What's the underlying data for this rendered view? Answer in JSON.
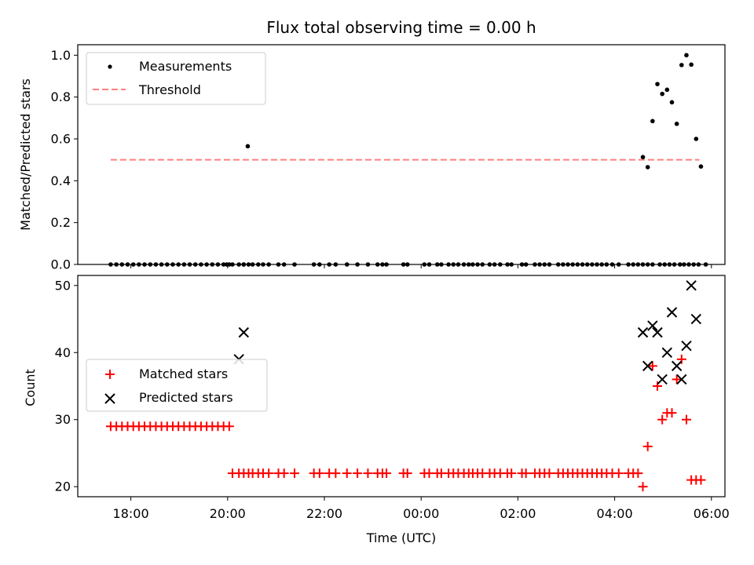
{
  "figure": {
    "title": "Flux total observing time = 0.00 h"
  },
  "chart_data": [
    {
      "type": "scatter",
      "title": "Flux total observing time = 0.00 h",
      "xlabel": "",
      "ylabel": "Matched/Predicted stars",
      "ylim": [
        0,
        1.05
      ],
      "yticks": [
        "0.0",
        "0.2",
        "0.4",
        "0.6",
        "0.8",
        "1.0"
      ],
      "legend_position": "upper left",
      "series": [
        {
          "name": "Measurements",
          "marker": "dot",
          "color": "#000000",
          "x": [
            "17:35",
            "17:42",
            "17:49",
            "17:56",
            "18:03",
            "18:10",
            "18:17",
            "18:24",
            "18:31",
            "18:38",
            "18:45",
            "18:52",
            "18:59",
            "19:06",
            "19:13",
            "19:20",
            "19:27",
            "19:34",
            "19:41",
            "19:48",
            "19:55",
            "20:02",
            "20:06",
            "20:14",
            "20:20",
            "20:26",
            "20:31",
            "20:38",
            "20:44",
            "20:51",
            "21:03",
            "21:10",
            "21:23",
            "21:47",
            "21:54",
            "22:06",
            "22:14",
            "22:28",
            "22:41",
            "22:54",
            "23:06",
            "23:12",
            "23:17",
            "23:38",
            "23:43",
            "24:04",
            "24:10",
            "24:20",
            "24:25",
            "24:34",
            "24:40",
            "24:46",
            "24:53",
            "24:59",
            "25:04",
            "25:10",
            "25:16",
            "25:25",
            "25:31",
            "25:38",
            "25:47",
            "25:52",
            "26:05",
            "26:10",
            "26:21",
            "26:27",
            "26:33",
            "26:39",
            "26:50",
            "26:56",
            "27:02",
            "27:08",
            "27:14",
            "27:20",
            "27:26",
            "27:32",
            "27:38",
            "27:44",
            "27:50",
            "27:57",
            "28:05",
            "28:17",
            "28:23",
            "28:29",
            "28:35",
            "28:41",
            "28:47",
            "28:56",
            "29:02",
            "29:08",
            "29:14",
            "29:21",
            "29:26",
            "29:32",
            "29:38",
            "29:44",
            "29:53",
            "19:59",
            "20:20",
            "20:25",
            "28:35",
            "28:41",
            "28:47",
            "28:53",
            "28:59",
            "29:05",
            "29:11",
            "29:17",
            "29:23",
            "29:29",
            "29:35",
            "29:41",
            "29:47"
          ],
          "y": [
            0,
            0,
            0,
            0,
            0,
            0,
            0,
            0,
            0,
            0,
            0,
            0,
            0,
            0,
            0,
            0,
            0,
            0,
            0,
            0,
            0,
            0,
            0,
            0,
            0,
            0,
            0,
            0,
            0,
            0,
            0,
            0,
            0,
            0,
            0,
            0,
            0,
            0,
            0,
            0,
            0,
            0,
            0,
            0,
            0,
            0,
            0,
            0,
            0,
            0,
            0,
            0,
            0,
            0,
            0,
            0,
            0,
            0,
            0,
            0,
            0,
            0,
            0,
            0,
            0,
            0,
            0,
            0,
            0,
            0,
            0,
            0,
            0,
            0,
            0,
            0,
            0,
            0,
            0,
            0,
            0,
            0,
            0,
            0,
            0,
            0,
            0,
            0,
            0,
            0,
            0,
            0,
            0,
            0,
            0,
            0,
            0,
            0,
            0,
            0.565,
            0.513,
            0.465,
            0.685,
            0.862,
            0.815,
            0.835,
            0.775,
            0.672,
            0.953,
            1.0,
            0.955,
            0.6,
            0.468
          ]
        },
        {
          "name": "Threshold",
          "style": "dashed",
          "color": "#ff7f7f",
          "x": [
            "17:35",
            "29:45"
          ],
          "y": [
            0.5,
            0.5
          ]
        }
      ]
    },
    {
      "type": "scatter",
      "title": "",
      "xlabel": "Time (UTC)",
      "ylabel": "Count",
      "ylim": [
        18.5,
        51.5
      ],
      "yticks": [
        "20",
        "30",
        "40",
        "50"
      ],
      "xticks": [
        "18:00",
        "20:00",
        "22:00",
        "00:00",
        "02:00",
        "04:00",
        "06:00"
      ],
      "legend_position": "center left",
      "series": [
        {
          "name": "Matched stars",
          "marker": "plus",
          "color": "#ff0000",
          "x": [
            "17:35",
            "17:42",
            "17:49",
            "17:56",
            "18:03",
            "18:10",
            "18:17",
            "18:24",
            "18:31",
            "18:38",
            "18:45",
            "18:52",
            "18:59",
            "19:06",
            "19:13",
            "19:20",
            "19:27",
            "19:34",
            "19:41",
            "19:48",
            "19:55",
            "20:02",
            "20:06",
            "20:14",
            "20:20",
            "20:26",
            "20:31",
            "20:38",
            "20:44",
            "20:51",
            "21:03",
            "21:10",
            "21:23",
            "21:47",
            "21:54",
            "22:06",
            "22:14",
            "22:28",
            "22:41",
            "22:54",
            "23:06",
            "23:12",
            "23:17",
            "23:38",
            "23:43",
            "24:04",
            "24:10",
            "24:20",
            "24:25",
            "24:34",
            "24:40",
            "24:46",
            "24:53",
            "24:59",
            "25:04",
            "25:10",
            "25:16",
            "25:25",
            "25:31",
            "25:38",
            "25:47",
            "25:52",
            "26:05",
            "26:10",
            "26:21",
            "26:27",
            "26:33",
            "26:39",
            "26:50",
            "26:56",
            "27:02",
            "27:08",
            "27:14",
            "27:20",
            "27:26",
            "27:32",
            "27:38",
            "27:44",
            "27:50",
            "27:57",
            "28:05",
            "28:17",
            "28:23",
            "28:29",
            "28:35",
            "28:41",
            "28:47",
            "28:53",
            "28:59",
            "29:05",
            "29:11",
            "29:17",
            "29:23",
            "29:29",
            "29:35",
            "29:41",
            "29:47"
          ],
          "y": [
            29,
            29,
            29,
            29,
            29,
            29,
            29,
            29,
            29,
            29,
            29,
            29,
            29,
            29,
            29,
            29,
            29,
            29,
            29,
            29,
            29,
            29,
            22,
            22,
            22,
            22,
            22,
            22,
            22,
            22,
            22,
            22,
            22,
            22,
            22,
            22,
            22,
            22,
            22,
            22,
            22,
            22,
            22,
            22,
            22,
            22,
            22,
            22,
            22,
            22,
            22,
            22,
            22,
            22,
            22,
            22,
            22,
            22,
            22,
            22,
            22,
            22,
            22,
            22,
            22,
            22,
            22,
            22,
            22,
            22,
            22,
            22,
            22,
            22,
            22,
            22,
            22,
            22,
            22,
            22,
            22,
            22,
            22,
            22,
            20,
            26,
            38,
            35,
            30,
            31,
            31,
            36,
            39,
            30,
            21,
            21,
            21
          ]
        },
        {
          "name": "Predicted stars",
          "marker": "x",
          "color": "#000000",
          "x": [
            "20:14",
            "20:20",
            "28:35",
            "28:41",
            "28:47",
            "28:53",
            "28:59",
            "29:05",
            "29:11",
            "29:17",
            "29:23",
            "29:29",
            "29:35"
          ],
          "y": [
            39,
            43,
            43,
            38,
            44,
            43,
            36,
            40,
            46,
            38,
            36,
            41,
            50
          ]
        }
      ]
    }
  ],
  "extra_points": {
    "predicted_last": {
      "x": "29:41",
      "y": 45
    }
  }
}
